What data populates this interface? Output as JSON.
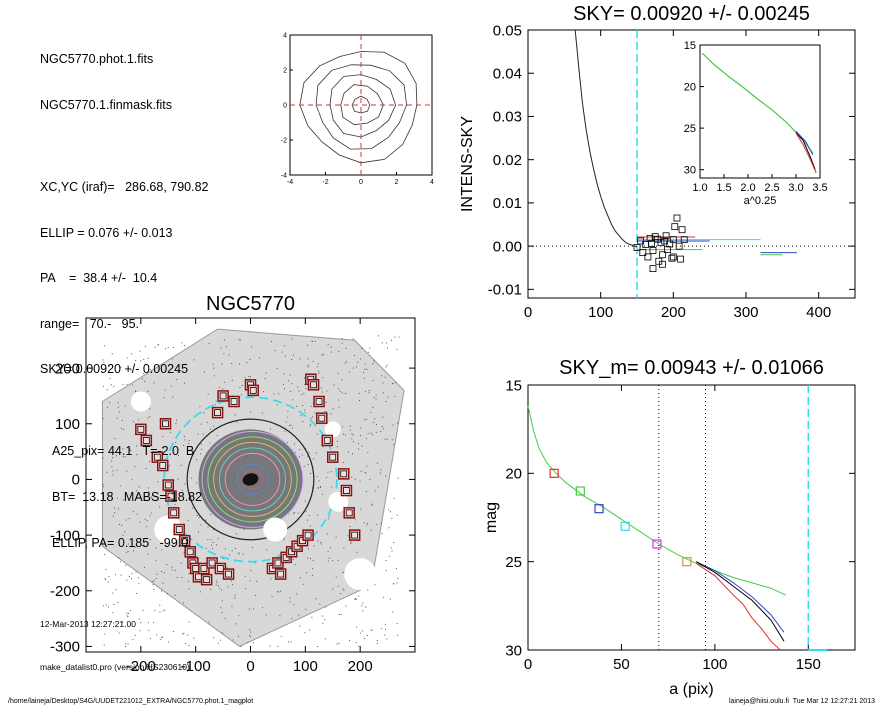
{
  "info": {
    "lines1": [
      "NGC5770.phot.1.fits",
      "NGC5770.1.finmask.fits"
    ],
    "lines2": [
      "XC,YC (iraf)=   286.68, 790.82",
      "ELLIP = 0.076 +/- 0.013",
      "PA    =  38.4 +/-  10.4",
      "range=   70.-   95.",
      "SKY= 0.00920 +/- 0.00245"
    ],
    "lines3": [
      "A25_pix= 44.1   T=-2.0  B",
      "BT=  13.18   MABS=-18.82",
      "ELLIP, PA= 0.185   -99.0"
    ],
    "date": "12-Mar-2013 12:27:21.00",
    "program": "make_datalist0.pro (version HS230610)"
  },
  "footer": {
    "left": "/home/laineja/Desktop/S4G/UUDET221012_EXTRA/NGC5770.phot.1_magplot",
    "right": "laineja@hiisi.oulu.fi  Tue Mar 12 12:27:21 2013"
  },
  "colors": {
    "cyan": "#33ddee",
    "red": "#e03030",
    "green": "#44cc44",
    "blue": "#3344cc",
    "magenta": "#dd33dd",
    "maroon": "#8b1010"
  },
  "chart_data": [
    {
      "id": "center_contours",
      "type": "contour",
      "xlim": [
        -4,
        4
      ],
      "ylim": [
        -4,
        4
      ],
      "xticks": [
        "-4",
        "-2",
        "0",
        "2",
        "4"
      ],
      "yticks": [
        "4",
        "2",
        "0",
        "-2",
        "-4"
      ],
      "contour_radii": [
        0.5,
        1.2,
        1.85,
        2.55,
        3.3
      ]
    },
    {
      "id": "intens_sky",
      "type": "line",
      "title": "SKY= 0.00920 +/- 0.00245",
      "ylabel": "INTENS-SKY",
      "xlim": [
        0,
        450
      ],
      "ylim": [
        -0.012,
        0.05
      ],
      "xticks": [
        "0",
        "100",
        "200",
        "300",
        "400"
      ],
      "yticks": [
        "0.05",
        "0.04",
        "0.03",
        "0.02",
        "0.01",
        "0.00",
        "-0.01"
      ],
      "sky_radius": 150,
      "profile": {
        "x": [
          65,
          70,
          75,
          80,
          85,
          90,
          95,
          100,
          105,
          110,
          115,
          120,
          125,
          130,
          135,
          140,
          145,
          150
        ],
        "y": [
          0.05,
          0.041,
          0.033,
          0.027,
          0.022,
          0.018,
          0.0145,
          0.0115,
          0.009,
          0.007,
          0.005,
          0.0035,
          0.0025,
          0.0015,
          0.0008,
          0.0004,
          0.0001,
          -0.0002
        ]
      },
      "sky_boxes": {
        "x": [
          150,
          155,
          158,
          162,
          165,
          168,
          170,
          172,
          175,
          178,
          180,
          183,
          185,
          188,
          190,
          192,
          195,
          198,
          200,
          202,
          205,
          208,
          210,
          212,
          215,
          172,
          185,
          200
        ],
        "y": [
          -0.0003,
          0.0012,
          -0.0015,
          0.0004,
          -0.0025,
          0.0018,
          0.0006,
          -0.001,
          0.0022,
          0.0016,
          -0.0035,
          0.0008,
          -0.002,
          0.0012,
          0.0024,
          -0.0008,
          0.0005,
          -0.0028,
          0.0015,
          0.0045,
          0.0065,
          0.0,
          -0.003,
          0.0038,
          0.0015,
          -0.0052,
          -0.0042,
          -0.0025
        ]
      },
      "inset": {
        "xlabel": "a^0.25",
        "xticks": [
          "1.0",
          "1.5",
          "2.0",
          "2.5",
          "3.0",
          "3.5"
        ],
        "yticks": [
          "15",
          "20",
          "25",
          "30"
        ],
        "xlim": [
          1.0,
          3.5
        ],
        "ylim": [
          15,
          31
        ]
      }
    },
    {
      "id": "galaxy_image",
      "type": "scatter",
      "title": "NGC5770",
      "xlim": [
        -300,
        300
      ],
      "ylim": [
        -310,
        290
      ],
      "xticks": [
        "-200",
        "-100",
        "0",
        "100",
        "200"
      ],
      "yticks": [
        "200",
        "100",
        "0",
        "-100",
        "-200",
        "-300"
      ],
      "mask_boxes": {
        "x": [
          -200,
          -190,
          -170,
          -160,
          -155,
          -150,
          -145,
          -140,
          -130,
          -120,
          -110,
          -105,
          -100,
          -95,
          -85,
          -80,
          -70,
          -60,
          -55,
          -50,
          -40,
          -30,
          0,
          5,
          40,
          50,
          55,
          65,
          75,
          85,
          95,
          105,
          110,
          115,
          125,
          130,
          140,
          150,
          170,
          175,
          180,
          190
        ],
        "y": [
          90,
          70,
          40,
          25,
          100,
          -10,
          -30,
          -60,
          -90,
          -110,
          -130,
          -150,
          -160,
          -175,
          -160,
          -180,
          -150,
          120,
          -160,
          150,
          -170,
          140,
          170,
          160,
          -160,
          -150,
          -170,
          -140,
          -130,
          -120,
          -110,
          -100,
          180,
          170,
          140,
          110,
          70,
          40,
          10,
          -20,
          -60,
          -100
        ]
      },
      "inner_ellipse_radius": 110,
      "outer_ellipse_radius": 150
    },
    {
      "id": "mag_profile",
      "type": "line",
      "title": "SKY_m=  0.00943 +/- 0.01066",
      "xlabel": "a (pix)",
      "ylabel": "mag",
      "xlim": [
        0,
        175
      ],
      "ylim": [
        15,
        30
      ],
      "xticks": [
        "0",
        "50",
        "100",
        "150"
      ],
      "yticks": [
        "15",
        "20",
        "25",
        "30"
      ],
      "dotted_x": [
        70,
        95
      ],
      "sky_x": 150,
      "markers": [
        {
          "x": 14,
          "y": 20.0,
          "color": "#e03030"
        },
        {
          "x": 28,
          "y": 21.0,
          "color": "#44cc44"
        },
        {
          "x": 38,
          "y": 22.0,
          "color": "#3344cc"
        },
        {
          "x": 52,
          "y": 23.0,
          "color": "#33ddee"
        },
        {
          "x": 69,
          "y": 24.0,
          "color": "#dd33dd"
        },
        {
          "x": 85,
          "y": 25.0,
          "color": "#cc9933"
        }
      ],
      "series": [
        {
          "color": "#44cc44",
          "x": [
            0,
            3,
            6,
            10,
            15,
            20,
            25,
            30,
            40,
            50,
            60,
            70,
            80,
            90,
            100,
            110,
            120,
            130,
            138
          ],
          "y": [
            16.2,
            17.6,
            18.6,
            19.4,
            20.0,
            20.5,
            20.9,
            21.3,
            21.9,
            22.6,
            23.3,
            24.0,
            24.6,
            25.1,
            25.5,
            25.9,
            26.2,
            26.5,
            26.9
          ]
        },
        {
          "color": "#3344cc",
          "x": [
            90,
            100,
            110,
            120,
            130,
            137
          ],
          "y": [
            25.0,
            25.5,
            26.2,
            27.0,
            28.0,
            29.0
          ]
        },
        {
          "color": "#000000",
          "x": [
            90,
            100,
            110,
            120,
            130,
            137
          ],
          "y": [
            25.0,
            25.6,
            26.4,
            27.2,
            28.3,
            29.5
          ]
        },
        {
          "color": "#e03030",
          "x": [
            90,
            100,
            110,
            115,
            120,
            125,
            130,
            135
          ],
          "y": [
            25.1,
            25.8,
            26.9,
            27.4,
            28.2,
            28.8,
            29.5,
            30.0
          ]
        },
        {
          "color": "#33ddee",
          "x": [
            150,
            160
          ],
          "y": [
            30.0,
            30.0
          ]
        }
      ]
    }
  ]
}
